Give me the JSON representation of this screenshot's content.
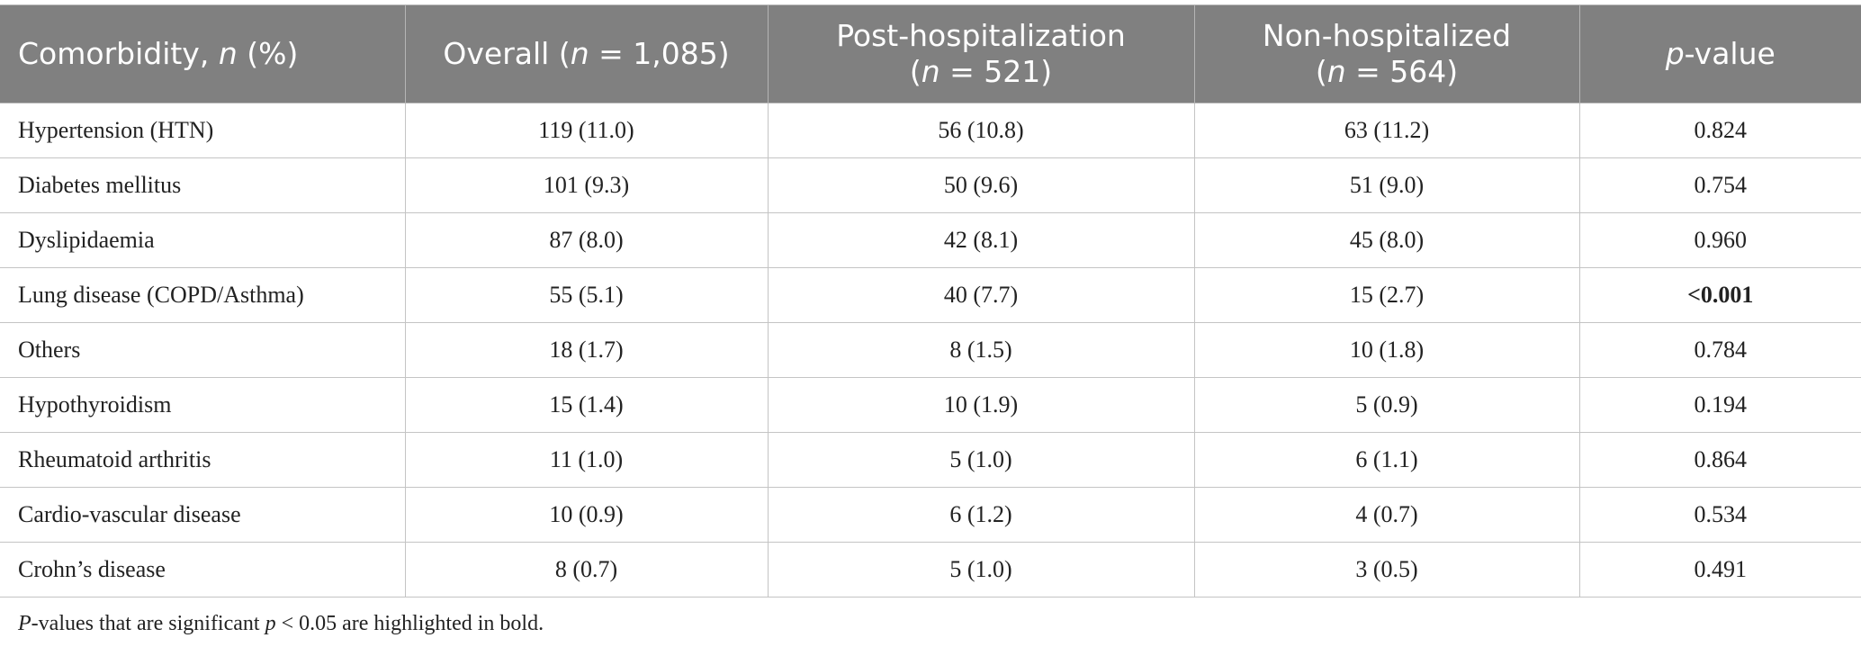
{
  "table": {
    "header": [
      [
        [
          {
            "text": "Comorbidity, "
          },
          {
            "text": "n",
            "italic": true
          },
          {
            "text": " (%)"
          }
        ]
      ],
      [
        [
          {
            "text": "Overall ("
          },
          {
            "text": "n",
            "italic": true
          },
          {
            "text": " = 1,085)"
          }
        ]
      ],
      [
        [
          {
            "text": "Post-hospitalization"
          }
        ],
        [
          {
            "text": "("
          },
          {
            "text": "n",
            "italic": true
          },
          {
            "text": " = 521)"
          }
        ]
      ],
      [
        [
          {
            "text": "Non-hospitalized"
          }
        ],
        [
          {
            "text": "("
          },
          {
            "text": "n",
            "italic": true
          },
          {
            "text": " = 564)"
          }
        ]
      ],
      [
        [
          {
            "text": "p",
            "italic": true
          },
          {
            "text": "-value"
          }
        ]
      ]
    ],
    "rows": [
      [
        {
          "text": "Hypertension (HTN)"
        },
        {
          "text": "119 (11.0)"
        },
        {
          "text": "56 (10.8)"
        },
        {
          "text": "63 (11.2)"
        },
        {
          "text": "0.824"
        }
      ],
      [
        {
          "text": "Diabetes mellitus"
        },
        {
          "text": "101 (9.3)"
        },
        {
          "text": "50 (9.6)"
        },
        {
          "text": "51 (9.0)"
        },
        {
          "text": "0.754"
        }
      ],
      [
        {
          "text": "Dyslipidaemia"
        },
        {
          "text": "87 (8.0)"
        },
        {
          "text": "42 (8.1)"
        },
        {
          "text": "45 (8.0)"
        },
        {
          "text": "0.960"
        }
      ],
      [
        {
          "text": "Lung disease (COPD/Asthma)"
        },
        {
          "text": "55 (5.1)"
        },
        {
          "text": "40 (7.7)"
        },
        {
          "text": "15 (2.7)"
        },
        {
          "text": "<0.001",
          "bold": true
        }
      ],
      [
        {
          "text": "Others"
        },
        {
          "text": "18 (1.7)"
        },
        {
          "text": "8 (1.5)"
        },
        {
          "text": "10 (1.8)"
        },
        {
          "text": "0.784"
        }
      ],
      [
        {
          "text": "Hypothyroidism"
        },
        {
          "text": "15 (1.4)"
        },
        {
          "text": "10 (1.9)"
        },
        {
          "text": "5 (0.9)"
        },
        {
          "text": "0.194"
        }
      ],
      [
        {
          "text": "Rheumatoid arthritis"
        },
        {
          "text": "11 (1.0)"
        },
        {
          "text": "5 (1.0)"
        },
        {
          "text": "6 (1.1)"
        },
        {
          "text": "0.864"
        }
      ],
      [
        {
          "text": "Cardio-vascular disease"
        },
        {
          "text": "10 (0.9)"
        },
        {
          "text": "6 (1.2)"
        },
        {
          "text": "4 (0.7)"
        },
        {
          "text": "0.534"
        }
      ],
      [
        {
          "text": "Crohn’s disease"
        },
        {
          "text": "8 (0.7)"
        },
        {
          "text": "5 (1.0)"
        },
        {
          "text": "3 (0.5)"
        },
        {
          "text": "0.491"
        }
      ]
    ],
    "footnote": [
      {
        "text": "P",
        "italic": true
      },
      {
        "text": "-values that are significant "
      },
      {
        "text": "p",
        "italic": true
      },
      {
        "text": " < 0.05 are highlighted in bold."
      }
    ]
  }
}
